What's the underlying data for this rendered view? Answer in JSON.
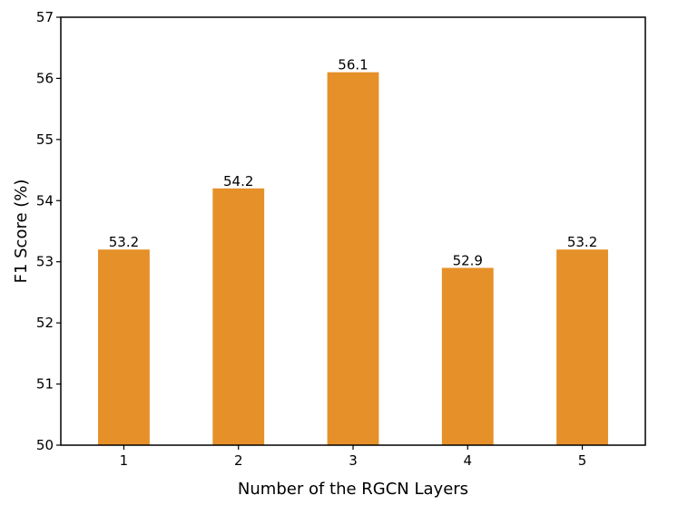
{
  "chart_data": {
    "type": "bar",
    "categories": [
      "1",
      "2",
      "3",
      "4",
      "5"
    ],
    "values": [
      53.2,
      54.2,
      56.1,
      52.9,
      53.2
    ],
    "data_labels": [
      "53.2",
      "54.2",
      "56.1",
      "52.9",
      "53.2"
    ],
    "title": "",
    "xlabel": "Number of the RGCN Layers",
    "ylabel": "F1 Score (%)",
    "ylim": [
      50,
      57
    ],
    "yticks": [
      "50",
      "51",
      "52",
      "53",
      "54",
      "55",
      "56",
      "57"
    ],
    "grid": false,
    "bar_color": "#E59028"
  }
}
